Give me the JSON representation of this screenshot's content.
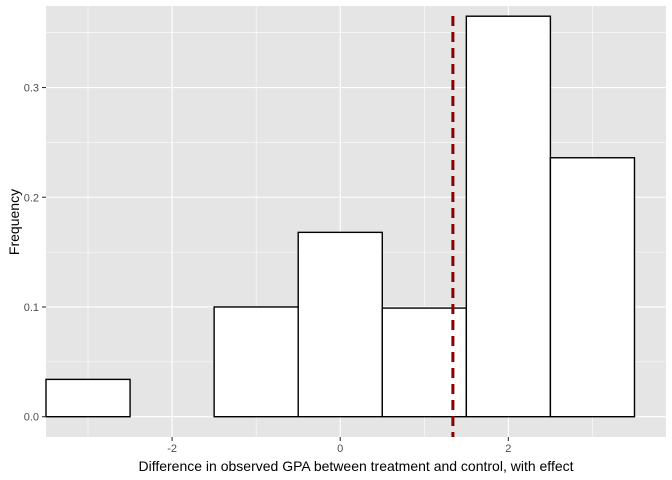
{
  "chart_data": {
    "type": "bar",
    "subtype": "histogram",
    "xlabel": "Difference in observed GPA between treatment and control, with effect",
    "ylabel": "Frequency",
    "xlim": [
      -3.5,
      3.875
    ],
    "ylim": [
      -0.0185,
      0.3743
    ],
    "x_ticks": [
      -2,
      0,
      2
    ],
    "x_tick_labels": [
      "-2",
      "0",
      "2"
    ],
    "y_ticks": [
      0.0,
      0.1,
      0.2,
      0.3
    ],
    "y_tick_labels": [
      "0.0",
      "0.1",
      "0.2",
      "0.3"
    ],
    "bins": [
      {
        "x0": -3.5,
        "x1": -2.5,
        "value": 0.034
      },
      {
        "x0": -2.5,
        "x1": -1.5,
        "value": 0.0
      },
      {
        "x0": -1.5,
        "x1": -0.5,
        "value": 0.1
      },
      {
        "x0": -0.5,
        "x1": 0.5,
        "value": 0.168
      },
      {
        "x0": 0.5,
        "x1": 1.5,
        "value": 0.099
      },
      {
        "x0": 1.5,
        "x1": 2.5,
        "value": 0.365
      },
      {
        "x0": 2.5,
        "x1": 3.5,
        "value": 0.236
      }
    ],
    "reference_line": {
      "x": 1.34,
      "style": "dashed",
      "color": "#8b0000"
    },
    "bar_fill": "#ffffff",
    "bar_stroke": "#000000",
    "panel_background": "#e5e5e5",
    "grid": true,
    "grid_color": "#ffffff"
  }
}
